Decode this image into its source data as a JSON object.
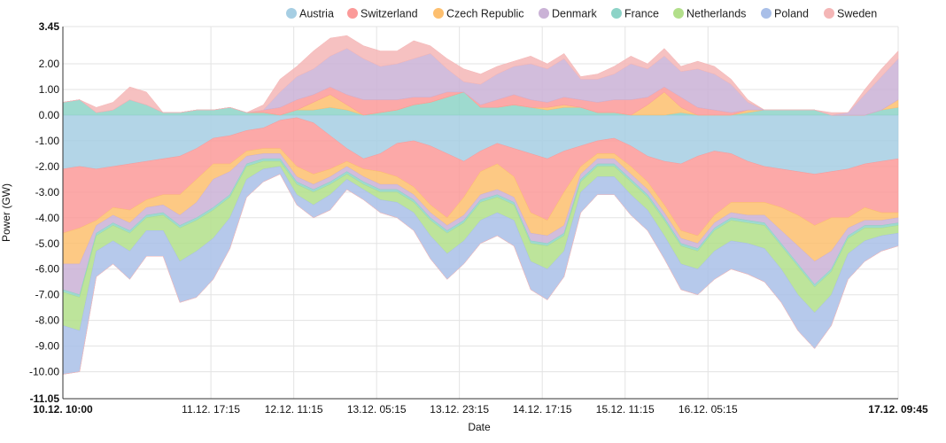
{
  "chart_data": {
    "type": "area",
    "stacked": true,
    "xlabel": "Date",
    "ylabel": "Power (GW)",
    "ylim": [
      -11.05,
      3.45
    ],
    "grid": true,
    "legend_position": "top",
    "x_start_label": "10.12. 10:00",
    "x_end_label": "17.12. 09:45",
    "x_ticks": [
      {
        "label": "10.12. 10:00",
        "t": 0
      },
      {
        "label": "11.12. 17:15",
        "t": 0.1772
      },
      {
        "label": "12.12. 11:15",
        "t": 0.2764
      },
      {
        "label": "13.12. 05:15",
        "t": 0.3756
      },
      {
        "label": "13.12. 23:15",
        "t": 0.4747
      },
      {
        "label": "14.12. 17:15",
        "t": 0.5739
      },
      {
        "label": "15.12. 11:15",
        "t": 0.6731
      },
      {
        "label": "16.12. 05:15",
        "t": 0.7723
      },
      {
        "label": "17.12. 09:45",
        "t": 1
      }
    ],
    "y_ticks": [
      3.45,
      2.0,
      1.0,
      0.0,
      -1.0,
      -2.0,
      -3.0,
      -4.0,
      -5.0,
      -6.0,
      -7.0,
      -8.0,
      -9.0,
      -10.0,
      -11.05
    ],
    "y_tick_labels": [
      "3.45",
      "2.00",
      "1.00",
      "0.00",
      "-1.00",
      "-2.00",
      "-3.00",
      "-4.00",
      "-5.00",
      "-6.00",
      "-7.00",
      "-8.00",
      "-9.00",
      "-10.00",
      "-11.05"
    ],
    "x": [
      0,
      0.02,
      0.04,
      0.06,
      0.08,
      0.1,
      0.12,
      0.14,
      0.16,
      0.18,
      0.2,
      0.22,
      0.24,
      0.26,
      0.28,
      0.3,
      0.32,
      0.34,
      0.36,
      0.38,
      0.4,
      0.42,
      0.44,
      0.46,
      0.48,
      0.5,
      0.52,
      0.54,
      0.56,
      0.58,
      0.6,
      0.62,
      0.64,
      0.66,
      0.68,
      0.7,
      0.72,
      0.74,
      0.76,
      0.78,
      0.8,
      0.82,
      0.84,
      0.86,
      0.88,
      0.9,
      0.92,
      0.94,
      0.96,
      0.98,
      1.0
    ],
    "series": [
      {
        "name": "Austria",
        "color": "#a6cee3",
        "values": [
          -2.1,
          -2.0,
          -2.1,
          -2.0,
          -1.9,
          -1.8,
          -1.7,
          -1.6,
          -1.3,
          -0.9,
          -0.8,
          -0.6,
          -0.5,
          -0.2,
          -0.1,
          -0.3,
          -0.8,
          -1.3,
          -1.7,
          -1.5,
          -1.1,
          -1.0,
          -1.2,
          -1.5,
          -1.8,
          -1.4,
          -1.1,
          -1.3,
          -1.5,
          -1.7,
          -1.4,
          -1.2,
          -1.0,
          -0.9,
          -1.2,
          -1.6,
          -1.8,
          -1.9,
          -1.6,
          -1.4,
          -1.5,
          -1.8,
          -2.0,
          -2.1,
          -2.2,
          -2.3,
          -2.2,
          -2.1,
          -1.9,
          -1.8,
          -1.7
        ]
      },
      {
        "name": "Switzerland",
        "color": "#fb9a99",
        "values": [
          -2.5,
          -2.4,
          -2.0,
          -1.6,
          -1.8,
          -1.5,
          -1.4,
          -1.5,
          -1.2,
          -1.0,
          -1.1,
          -0.8,
          -0.8,
          -1.1,
          -1.9,
          -2.0,
          -1.3,
          -0.5,
          -0.4,
          -0.7,
          -1.3,
          -1.8,
          -2.3,
          -2.5,
          -1.4,
          -0.8,
          -0.8,
          -1.1,
          -2.3,
          -2.4,
          -1.6,
          -0.8,
          -0.5,
          -0.6,
          -0.8,
          -1.0,
          -1.7,
          -2.6,
          -3.1,
          -2.5,
          -1.9,
          -1.6,
          -1.4,
          -1.5,
          -1.7,
          -2.0,
          -1.8,
          -1.9,
          -1.7,
          -2.0,
          -2.1
        ]
      },
      {
        "name": "Czech Republic",
        "color": "#fdbf6f",
        "values": [
          -1.2,
          -1.4,
          -0.2,
          -0.3,
          -0.5,
          -0.3,
          -0.4,
          -0.8,
          -0.9,
          -0.6,
          -0.3,
          -0.2,
          -0.2,
          -0.2,
          -0.4,
          -0.4,
          -0.3,
          -0.2,
          -0.3,
          -0.5,
          -0.3,
          -0.3,
          -0.3,
          -0.3,
          -0.7,
          -0.9,
          -1.0,
          -0.8,
          -0.8,
          -0.6,
          -1.3,
          -0.3,
          -0.2,
          -0.2,
          -0.3,
          -0.3,
          -0.3,
          -0.3,
          -0.3,
          -0.3,
          -0.4,
          -0.5,
          -0.5,
          -0.9,
          -1.2,
          -1.4,
          -1.3,
          -0.4,
          -0.5,
          -0.3,
          -0.2
        ]
      },
      {
        "name": "Denmark",
        "color": "#cab2d6",
        "values": [
          -1.0,
          -1.2,
          -0.3,
          -0.3,
          -0.3,
          -0.3,
          -0.3,
          -0.4,
          -0.6,
          -1.1,
          -0.9,
          -0.3,
          -0.2,
          -0.2,
          -0.2,
          -0.2,
          -0.2,
          -0.2,
          -0.2,
          -0.2,
          -0.2,
          -0.2,
          -0.2,
          -0.2,
          -0.2,
          -0.2,
          -0.2,
          -0.2,
          -0.3,
          -0.3,
          -0.3,
          -0.2,
          -0.2,
          -0.2,
          -0.2,
          -0.2,
          -0.2,
          -0.2,
          -0.2,
          -0.2,
          -0.2,
          -0.2,
          -0.3,
          -0.5,
          -0.7,
          -0.9,
          -0.7,
          -0.3,
          -0.2,
          -0.2,
          -0.2
        ]
      },
      {
        "name": "France",
        "color": "#8dd3c7",
        "values": [
          -0.1,
          -0.1,
          -0.1,
          -0.1,
          -0.1,
          -0.1,
          -0.1,
          -0.1,
          -0.1,
          -0.1,
          -0.1,
          -0.1,
          -0.1,
          -0.1,
          -0.1,
          -0.1,
          -0.1,
          -0.1,
          -0.1,
          -0.1,
          -0.1,
          -0.1,
          -0.1,
          -0.1,
          -0.1,
          -0.1,
          -0.1,
          -0.1,
          -0.1,
          -0.1,
          -0.1,
          -0.1,
          -0.1,
          -0.1,
          -0.1,
          -0.1,
          -0.1,
          -0.1,
          -0.1,
          -0.1,
          -0.1,
          -0.1,
          -0.1,
          -0.1,
          -0.1,
          -0.1,
          -0.1,
          -0.1,
          -0.1,
          -0.1,
          -0.1
        ]
      },
      {
        "name": "Netherlands",
        "color": "#b2df8a",
        "values": [
          -1.3,
          -1.3,
          -0.6,
          -0.6,
          -0.7,
          -0.5,
          -0.6,
          -1.3,
          -1.2,
          -1.1,
          -0.8,
          -0.5,
          -0.3,
          -0.2,
          -0.4,
          -0.5,
          -0.4,
          -0.2,
          -0.2,
          -0.3,
          -0.4,
          -0.4,
          -0.6,
          -0.8,
          -0.7,
          -0.7,
          -0.6,
          -0.6,
          -0.7,
          -0.9,
          -0.6,
          -0.4,
          -0.4,
          -0.4,
          -0.5,
          -0.5,
          -0.6,
          -0.7,
          -0.7,
          -0.8,
          -0.8,
          -0.8,
          -0.9,
          -0.9,
          -1.1,
          -1.0,
          -0.9,
          -0.6,
          -0.5,
          -0.3,
          -0.3
        ]
      },
      {
        "name": "Poland",
        "color": "#a9bfe8",
        "values": [
          -1.9,
          -1.6,
          -1.0,
          -0.9,
          -1.1,
          -1.0,
          -1.0,
          -1.6,
          -1.8,
          -1.6,
          -1.2,
          -0.7,
          -0.5,
          -0.3,
          -0.4,
          -0.5,
          -0.6,
          -0.4,
          -0.4,
          -0.5,
          -0.6,
          -0.7,
          -0.9,
          -1.0,
          -0.9,
          -0.9,
          -0.9,
          -1.0,
          -1.1,
          -1.2,
          -1.0,
          -0.8,
          -0.7,
          -0.7,
          -0.8,
          -0.8,
          -0.9,
          -1.0,
          -1.0,
          -1.1,
          -1.1,
          -1.2,
          -1.3,
          -1.3,
          -1.4,
          -1.4,
          -1.2,
          -1.0,
          -0.8,
          -0.6,
          -0.5
        ]
      },
      {
        "name": "Sweden",
        "color": "#f4b6b6",
        "values": [
          0.0,
          0.0,
          0.0,
          0.0,
          0.0,
          0.0,
          0.0,
          0.0,
          0.0,
          0.0,
          0.0,
          0.0,
          0.0,
          0.0,
          0.0,
          0.0,
          0.0,
          0.0,
          0.0,
          0.0,
          0.0,
          0.0,
          0.0,
          0.0,
          0.0,
          0.0,
          0.0,
          0.0,
          0.0,
          0.0,
          0.0,
          0.0,
          0.0,
          0.0,
          0.0,
          0.0,
          0.0,
          0.0,
          0.0,
          0.0,
          0.0,
          0.0,
          0.0,
          0.0,
          0.0,
          0.0,
          0.0,
          0.0,
          0.0,
          0.0,
          0.0
        ]
      }
    ],
    "positive_series": [
      {
        "name": "France",
        "color": "#8dd3c7",
        "values": [
          0.5,
          0.6,
          0.1,
          0.2,
          0.6,
          0.4,
          0.1,
          0.1,
          0.2,
          0.2,
          0.3,
          0.1,
          0.1,
          0.0,
          0.2,
          0.2,
          0.3,
          0.2,
          0.0,
          0.1,
          0.2,
          0.4,
          0.5,
          0.7,
          0.9,
          0.3,
          0.3,
          0.4,
          0.3,
          0.2,
          0.3,
          0.3,
          0.1,
          0.1,
          0.0,
          0.0,
          0.0,
          0.1,
          0.0,
          0.0,
          0.0,
          0.1,
          0.2,
          0.2,
          0.2,
          0.2,
          0.0,
          0.0,
          0.0,
          0.2,
          0.3
        ]
      },
      {
        "name": "Czech Republic",
        "color": "#fdbf6f",
        "values": [
          0.0,
          0.0,
          0.0,
          0.0,
          0.0,
          0.0,
          0.0,
          0.0,
          0.0,
          0.0,
          0.0,
          0.0,
          0.0,
          0.0,
          0.0,
          0.3,
          0.5,
          0.2,
          0.0,
          0.0,
          0.0,
          0.0,
          0.0,
          0.0,
          0.0,
          0.0,
          0.0,
          0.0,
          0.0,
          0.1,
          0.1,
          0.0,
          0.0,
          0.0,
          0.0,
          0.4,
          0.9,
          0.2,
          0.0,
          0.0,
          0.0,
          0.1,
          0.0,
          0.0,
          0.0,
          0.0,
          0.0,
          0.0,
          0.0,
          0.0,
          0.3
        ]
      },
      {
        "name": "Switzerland",
        "color": "#fb9a99",
        "values": [
          0.0,
          0.0,
          0.0,
          0.0,
          0.0,
          0.0,
          0.0,
          0.0,
          0.0,
          0.0,
          0.0,
          0.0,
          0.1,
          0.3,
          0.4,
          0.3,
          0.3,
          0.4,
          0.6,
          0.5,
          0.4,
          0.3,
          0.2,
          0.2,
          0.0,
          0.1,
          0.3,
          0.4,
          0.3,
          0.2,
          0.3,
          0.3,
          0.4,
          0.5,
          0.6,
          0.3,
          0.2,
          0.4,
          0.3,
          0.2,
          0.1,
          0.0,
          0.0,
          0.0,
          0.0,
          0.0,
          0.0,
          0.0,
          0.0,
          0.0,
          0.0
        ]
      },
      {
        "name": "Denmark",
        "color": "#cab2d6",
        "values": [
          0.0,
          0.0,
          0.0,
          0.0,
          0.0,
          0.0,
          0.0,
          0.0,
          0.0,
          0.0,
          0.0,
          0.0,
          0.0,
          0.6,
          0.9,
          1.0,
          1.2,
          1.8,
          1.6,
          1.3,
          1.4,
          1.5,
          1.7,
          0.9,
          0.4,
          0.8,
          1.0,
          1.1,
          1.4,
          1.3,
          1.5,
          0.8,
          0.9,
          1.0,
          1.4,
          1.1,
          1.2,
          1.0,
          1.5,
          1.4,
          1.1,
          0.3,
          0.0,
          0.0,
          0.0,
          0.0,
          0.0,
          0.1,
          0.8,
          1.3,
          1.6
        ]
      },
      {
        "name": "Sweden",
        "color": "#f4b6b6",
        "values": [
          0.0,
          0.0,
          0.2,
          0.3,
          0.5,
          0.5,
          0.0,
          0.0,
          0.0,
          0.0,
          0.0,
          0.0,
          0.2,
          0.5,
          0.4,
          0.7,
          0.7,
          0.5,
          0.5,
          0.6,
          0.5,
          0.7,
          0.3,
          0.4,
          0.5,
          0.4,
          0.3,
          0.2,
          0.3,
          0.2,
          0.2,
          0.1,
          0.2,
          0.3,
          0.3,
          0.2,
          0.3,
          0.2,
          0.3,
          0.3,
          0.2,
          0.1,
          0.0,
          0.0,
          0.0,
          0.0,
          0.1,
          0.0,
          0.2,
          0.3,
          0.3
        ]
      }
    ]
  }
}
